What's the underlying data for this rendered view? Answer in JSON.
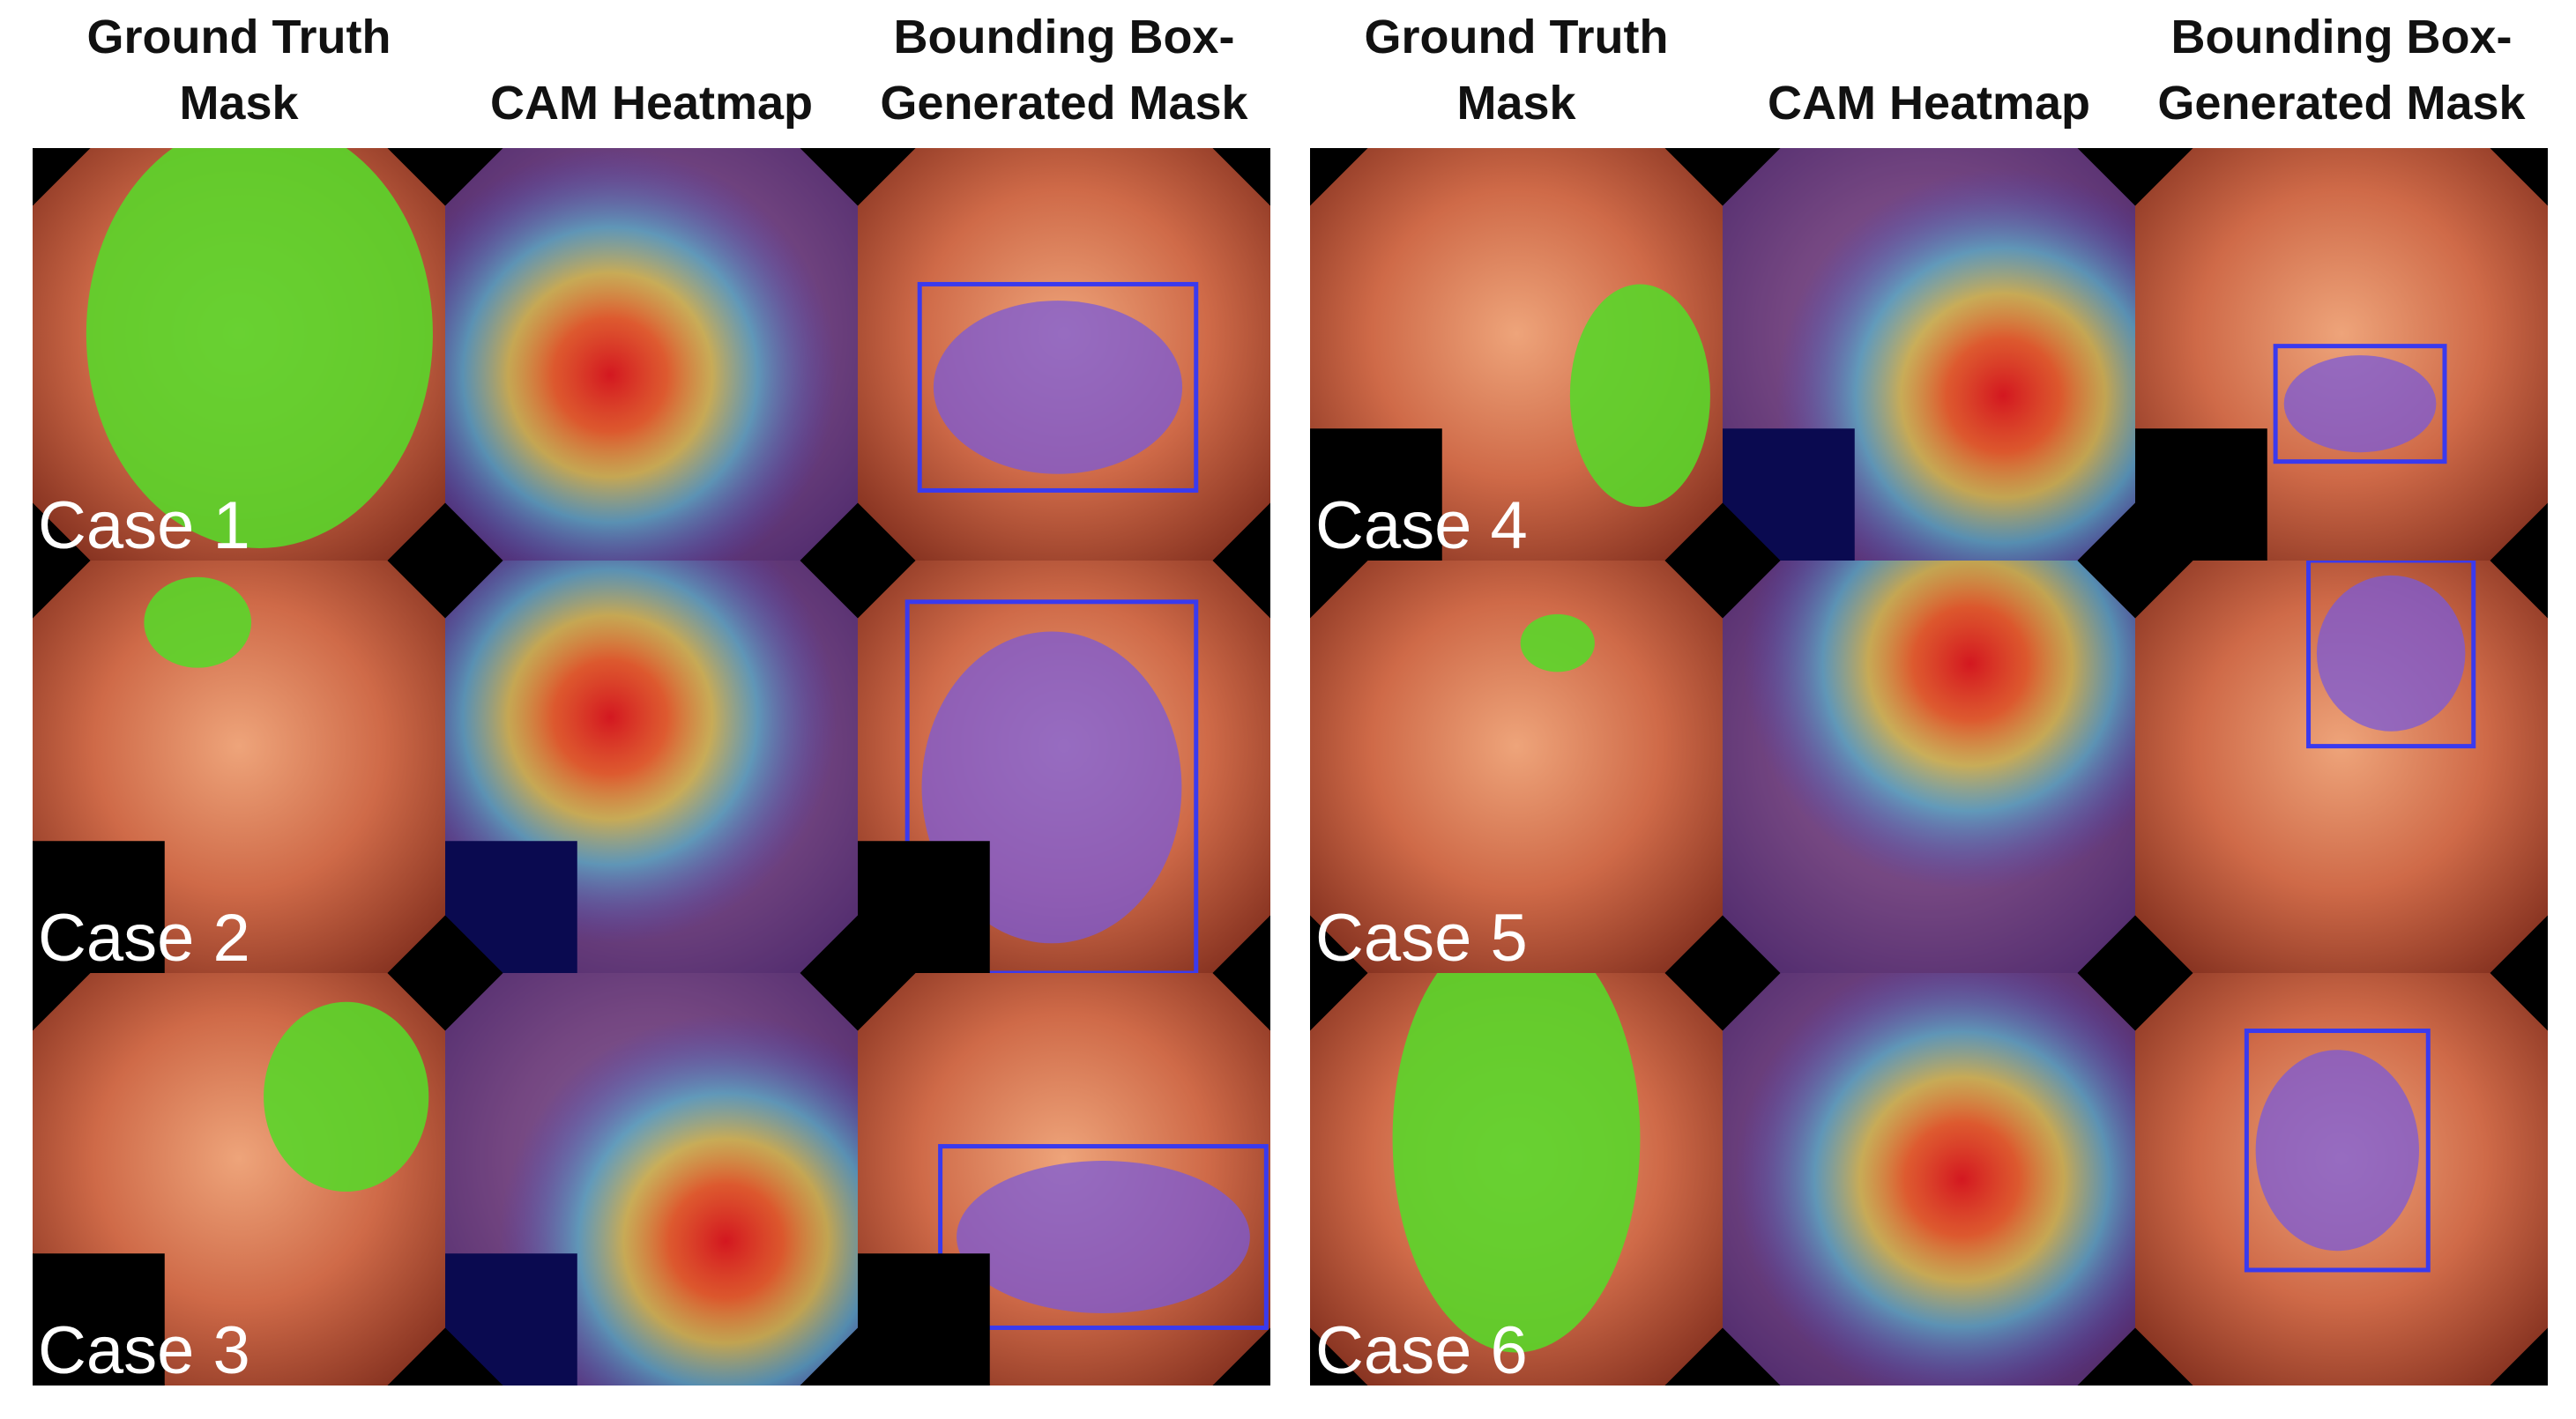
{
  "panels": [
    {
      "headers": [
        [
          "Ground Truth",
          "Mask"
        ],
        [
          "CAM Heatmap"
        ],
        [
          "Bounding Box-",
          "Generated Mask"
        ]
      ],
      "cases": [
        "Case 1",
        "Case 2",
        "Case 3"
      ]
    },
    {
      "headers": [
        [
          "Ground Truth",
          "Mask"
        ],
        [
          "CAM Heatmap"
        ],
        [
          "Bounding Box-",
          "Generated Mask"
        ]
      ],
      "cases": [
        "Case 4",
        "Case 5",
        "Case 6"
      ]
    }
  ]
}
